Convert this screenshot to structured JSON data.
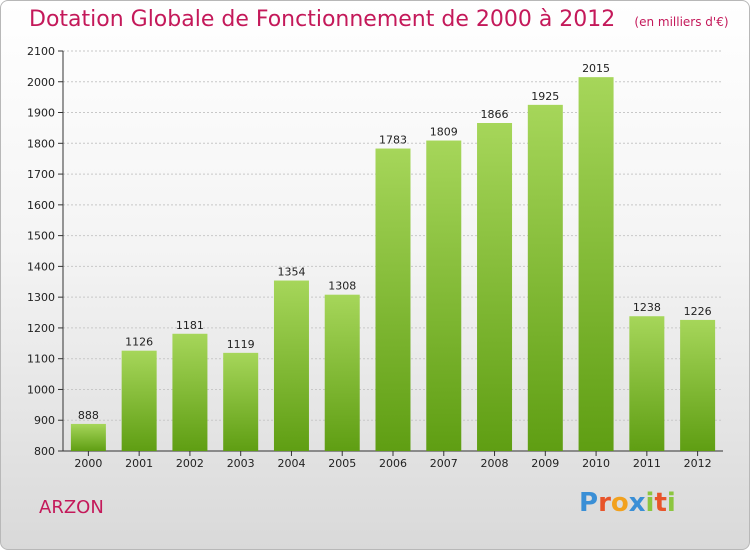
{
  "header": {
    "title": "Dotation Globale de Fonctionnement de 2000 à 2012",
    "unit": "(en milliers d'€)"
  },
  "footer": {
    "commune": "ARZON",
    "logo_letters": [
      "P",
      "r",
      "o",
      "x",
      "i",
      "t",
      "i"
    ],
    "logo_colors": [
      "#3a8fd6",
      "#e8542a",
      "#f2a11e",
      "#3a8fd6",
      "#8cc63f",
      "#e8542a",
      "#8cc63f"
    ]
  },
  "colors": {
    "bar_top": "#a6d65a",
    "bar_bottom": "#5f9e13",
    "title": "#c4195a"
  },
  "chart_data": {
    "type": "bar",
    "title": "Dotation Globale de Fonctionnement de 2000 à 2012",
    "xlabel": "",
    "ylabel": "",
    "categories": [
      "2000",
      "2001",
      "2002",
      "2003",
      "2004",
      "2005",
      "2006",
      "2007",
      "2008",
      "2009",
      "2010",
      "2011",
      "2012"
    ],
    "values": [
      888,
      1126,
      1181,
      1119,
      1354,
      1308,
      1783,
      1809,
      1866,
      1925,
      2015,
      1238,
      1226
    ],
    "ylim": [
      800,
      2100
    ],
    "yticks": [
      800,
      900,
      1000,
      1100,
      1200,
      1300,
      1400,
      1500,
      1600,
      1700,
      1800,
      1900,
      2000,
      2100
    ],
    "grid": true,
    "legend": "none"
  }
}
